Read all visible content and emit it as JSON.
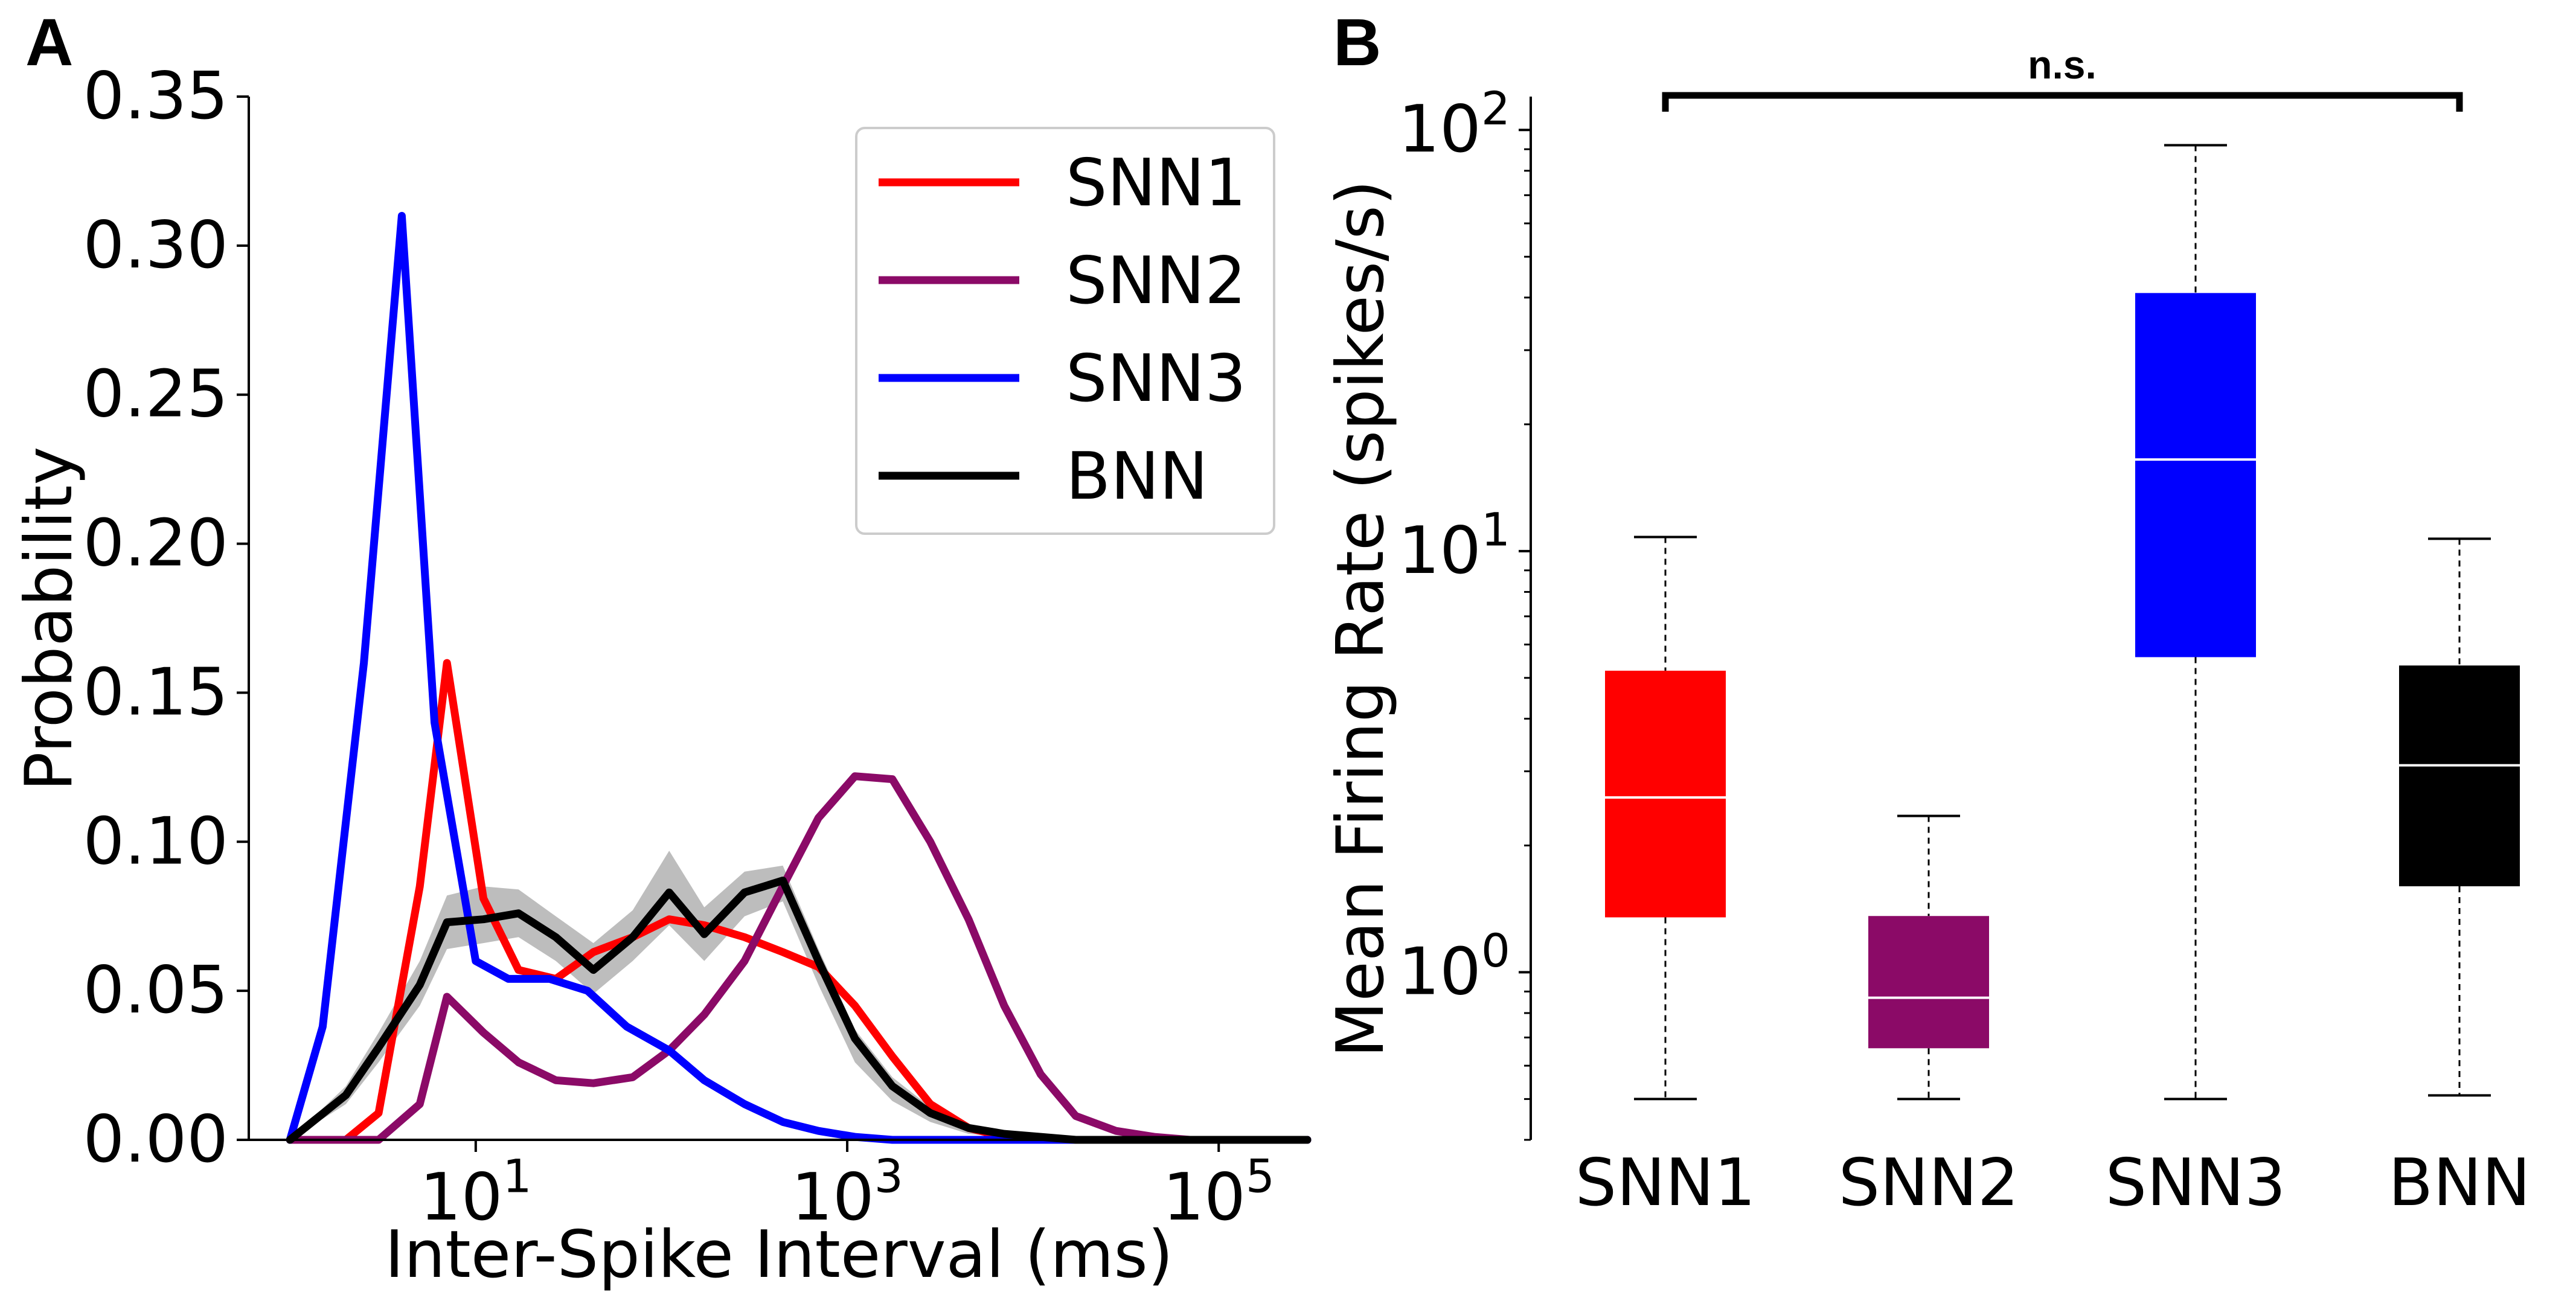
{
  "panels": {
    "a_label": "A",
    "b_label": "B"
  },
  "chart_data": [
    {
      "type": "line",
      "panel": "A",
      "xlabel": "Inter-Spike Interval (ms)",
      "ylabel": "Probability",
      "xscale": "log",
      "xlim": [
        0.6,
        300000
      ],
      "ylim": [
        0,
        0.35
      ],
      "xticks": [
        {
          "value": 10,
          "base": "10",
          "exp": "1"
        },
        {
          "value": 1000,
          "base": "10",
          "exp": "3"
        },
        {
          "value": 100000,
          "base": "10",
          "exp": "5"
        }
      ],
      "yticks": [
        "0.00",
        "0.05",
        "0.10",
        "0.15",
        "0.20",
        "0.25",
        "0.30",
        "0.35"
      ],
      "legend_placement": "upper right",
      "series": [
        {
          "name": "SNN1",
          "color": "#ff0000",
          "x": [
            1,
            2,
            3,
            5,
            7,
            11,
            17,
            27,
            43,
            70,
            110,
            170,
            280,
            450,
            700,
            1100,
            1750,
            2800,
            4500,
            7000,
            11000,
            17000,
            28000,
            45000,
            70000,
            110000,
            200000,
            300000
          ],
          "y": [
            0,
            0,
            0.009,
            0.085,
            0.16,
            0.081,
            0.057,
            0.054,
            0.063,
            0.068,
            0.074,
            0.072,
            0.068,
            0.063,
            0.058,
            0.045,
            0.028,
            0.012,
            0.004,
            0.001,
            0,
            0,
            0,
            0,
            0,
            0,
            0,
            0
          ]
        },
        {
          "name": "SNN2",
          "color": "#8b0a67",
          "x": [
            1,
            2,
            3,
            5,
            7,
            11,
            17,
            27,
            43,
            70,
            110,
            170,
            280,
            450,
            700,
            1100,
            1750,
            2800,
            4500,
            7000,
            11000,
            17000,
            28000,
            45000,
            70000,
            110000,
            200000,
            300000
          ],
          "y": [
            0,
            0,
            0,
            0.012,
            0.048,
            0.036,
            0.026,
            0.02,
            0.019,
            0.021,
            0.03,
            0.042,
            0.06,
            0.085,
            0.108,
            0.122,
            0.121,
            0.1,
            0.074,
            0.045,
            0.022,
            0.008,
            0.003,
            0.001,
            0,
            0,
            0,
            0
          ]
        },
        {
          "name": "SNN3",
          "color": "#0000ff",
          "x": [
            1,
            1.5,
            2.5,
            4,
            6,
            10,
            15,
            25,
            40,
            65,
            110,
            170,
            280,
            450,
            700,
            1100,
            1750,
            2800,
            4500,
            7000,
            11000,
            17000,
            28000,
            45000,
            70000,
            110000,
            200000,
            300000
          ],
          "y": [
            0,
            0.038,
            0.16,
            0.31,
            0.14,
            0.06,
            0.054,
            0.054,
            0.05,
            0.038,
            0.03,
            0.02,
            0.012,
            0.006,
            0.003,
            0.001,
            0,
            0,
            0,
            0,
            0,
            0,
            0,
            0,
            0,
            0,
            0,
            0
          ]
        },
        {
          "name": "BNN",
          "color": "#000000",
          "x": [
            1,
            2,
            3,
            5,
            7,
            11,
            17,
            27,
            43,
            70,
            110,
            170,
            280,
            450,
            700,
            1100,
            1750,
            2800,
            4500,
            7000,
            11000,
            17000,
            28000,
            45000,
            70000,
            110000,
            200000,
            300000
          ],
          "y": [
            0,
            0.015,
            0.031,
            0.052,
            0.073,
            0.074,
            0.076,
            0.068,
            0.057,
            0.068,
            0.083,
            0.069,
            0.083,
            0.087,
            0.06,
            0.034,
            0.018,
            0.009,
            0.004,
            0.002,
            0.001,
            0,
            0,
            0,
            0,
            0,
            0,
            0
          ],
          "band_upper": [
            0,
            0.018,
            0.036,
            0.06,
            0.082,
            0.085,
            0.084,
            0.075,
            0.066,
            0.077,
            0.097,
            0.078,
            0.09,
            0.092,
            0.064,
            0.037,
            0.021,
            0.011,
            0.005,
            0.002,
            0.001,
            0,
            0,
            0,
            0,
            0,
            0,
            0
          ],
          "band_lower": [
            0,
            0.012,
            0.026,
            0.045,
            0.064,
            0.066,
            0.068,
            0.06,
            0.049,
            0.06,
            0.072,
            0.06,
            0.075,
            0.08,
            0.052,
            0.026,
            0.013,
            0.006,
            0.002,
            0.001,
            0,
            0,
            0,
            0,
            0,
            0,
            0,
            0
          ],
          "band_color": "#bdbdbd"
        }
      ]
    },
    {
      "type": "box",
      "panel": "B",
      "ylabel": "Mean Firing Rate (spikes/s)",
      "yscale": "log",
      "ylim": [
        0.4,
        120
      ],
      "yticks": [
        {
          "value": 1,
          "base": "10",
          "exp": "0"
        },
        {
          "value": 10,
          "base": "10",
          "exp": "1"
        },
        {
          "value": 100,
          "base": "10",
          "exp": "2"
        }
      ],
      "categories": [
        "SNN1",
        "SNN2",
        "SNN3",
        "BNN"
      ],
      "boxes": [
        {
          "name": "SNN1",
          "color": "#ff0000",
          "whisker_low": 0.5,
          "q1": 1.35,
          "median": 2.6,
          "q3": 5.2,
          "whisker_high": 10.8
        },
        {
          "name": "SNN2",
          "color": "#8b0a67",
          "whisker_low": 0.5,
          "q1": 0.66,
          "median": 0.87,
          "q3": 1.36,
          "whisker_high": 2.35
        },
        {
          "name": "SNN3",
          "color": "#0000ff",
          "whisker_low": 0.5,
          "q1": 5.6,
          "median": 16.5,
          "q3": 41,
          "whisker_high": 92
        },
        {
          "name": "BNN",
          "color": "#000000",
          "whisker_low": 0.51,
          "q1": 1.6,
          "median": 3.1,
          "q3": 5.35,
          "whisker_high": 10.7
        }
      ],
      "significance": {
        "label": "n.s.",
        "from": "SNN1",
        "to": "BNN"
      }
    }
  ]
}
